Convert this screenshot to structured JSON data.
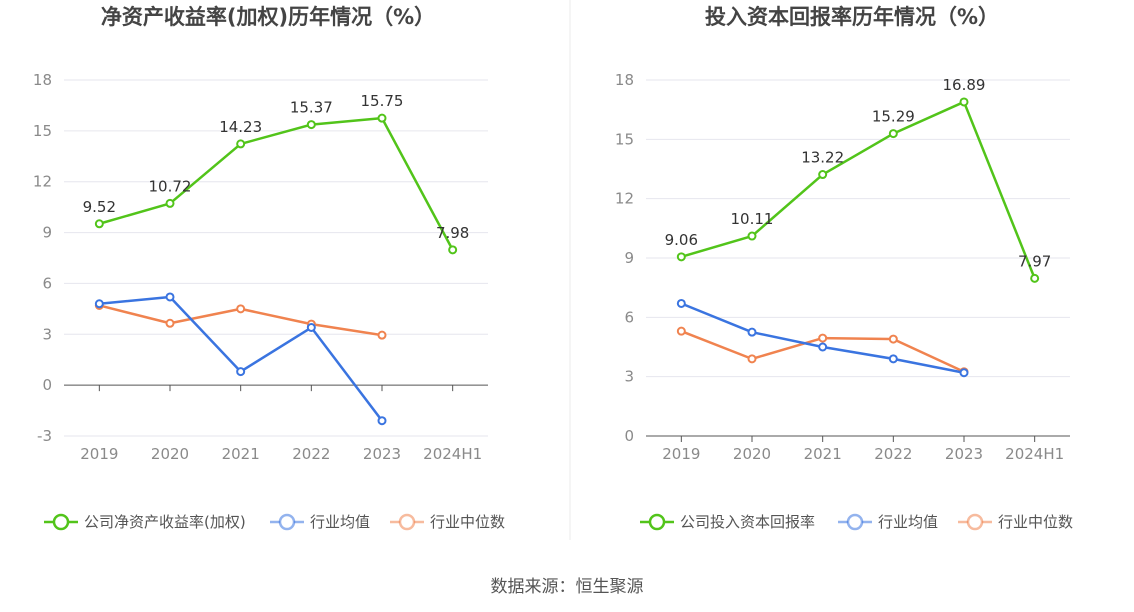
{
  "source": "数据来源：恒生聚源",
  "colors": {
    "company": "#52c41a",
    "avg": "#3a74e0",
    "median": "#f0834f",
    "axis": "#555555",
    "grid": "#e6e6ee"
  },
  "chart_data": [
    {
      "type": "line",
      "title": "净资产收益率(加权)历年情况（%）",
      "xlabel": "",
      "ylabel": "",
      "categories": [
        "2019",
        "2020",
        "2021",
        "2022",
        "2023",
        "2024H1"
      ],
      "ylim": [
        -3,
        18
      ],
      "yticks": [
        -3,
        0,
        3,
        6,
        9,
        12,
        15,
        18
      ],
      "series": [
        {
          "name": "公司净资产收益率(加权)",
          "color_key": "company",
          "values": [
            9.52,
            10.72,
            14.23,
            15.37,
            15.75,
            7.98
          ],
          "show_labels": true
        },
        {
          "name": "行业均值",
          "color_key": "avg",
          "values": [
            4.8,
            5.2,
            0.8,
            3.4,
            -2.1,
            null
          ],
          "show_labels": false
        },
        {
          "name": "行业中位数",
          "color_key": "median",
          "values": [
            4.7,
            3.65,
            4.5,
            3.6,
            2.95,
            null
          ],
          "show_labels": false
        }
      ]
    },
    {
      "type": "line",
      "title": "投入资本回报率历年情况（%）",
      "xlabel": "",
      "ylabel": "",
      "categories": [
        "2019",
        "2020",
        "2021",
        "2022",
        "2023",
        "2024H1"
      ],
      "ylim": [
        0,
        18
      ],
      "yticks": [
        0,
        3,
        6,
        9,
        12,
        15,
        18
      ],
      "series": [
        {
          "name": "公司投入资本回报率",
          "color_key": "company",
          "values": [
            9.06,
            10.11,
            13.22,
            15.29,
            16.89,
            7.97
          ],
          "show_labels": true
        },
        {
          "name": "行业均值",
          "color_key": "avg",
          "values": [
            6.7,
            5.25,
            4.5,
            3.9,
            3.2,
            null
          ],
          "show_labels": false
        },
        {
          "name": "行业中位数",
          "color_key": "median",
          "values": [
            5.3,
            3.9,
            4.95,
            4.9,
            3.25,
            null
          ],
          "show_labels": false
        }
      ]
    }
  ]
}
